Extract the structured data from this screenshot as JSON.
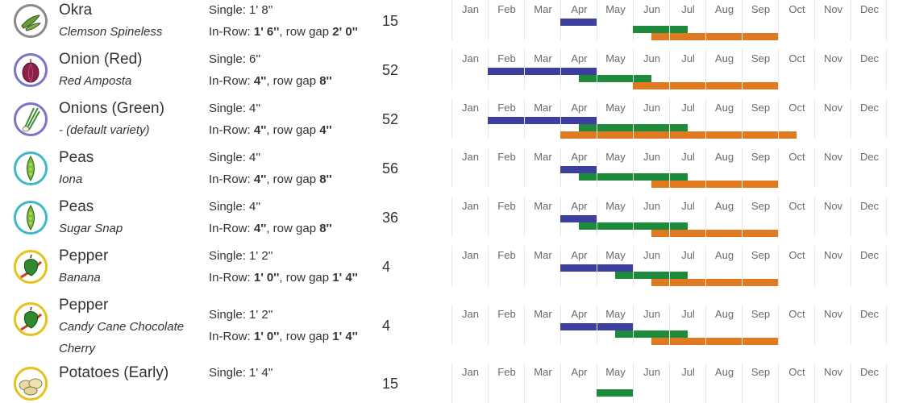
{
  "months": [
    "Jan",
    "Feb",
    "Mar",
    "Apr",
    "May",
    "Jun",
    "Jul",
    "Aug",
    "Sep",
    "Oct",
    "Nov",
    "Dec"
  ],
  "colors": {
    "indoor": "#3d3f9e",
    "transplant": "#1e8a3c",
    "harvest": "#e07a20"
  },
  "plants": [
    {
      "name": "Okra",
      "variety": [
        "Clemson Spineless"
      ],
      "icon": "okra-icon",
      "icon_color": "#8a8a8a",
      "single_label": "Single:",
      "single_value": "1' 8''",
      "inrow_label": "In-Row:",
      "inrow_value": "1' 6''",
      "gap_label": ", row gap",
      "gap_value": "2' 0''",
      "count": "15",
      "bars": [
        {
          "kind": "indoor",
          "start": 3.0,
          "end": 4.0
        },
        {
          "kind": "transplant",
          "start": 5.0,
          "end": 6.5
        },
        {
          "kind": "harvest",
          "start": 5.5,
          "end": 9.0
        }
      ]
    },
    {
      "name": "Onion (Red)",
      "variety": [
        "Red Amposta"
      ],
      "icon": "onion-icon",
      "icon_color": "#7b74c9",
      "single_label": "Single:",
      "single_value": "6''",
      "inrow_label": "In-Row:",
      "inrow_value": "4''",
      "gap_label": ", row gap",
      "gap_value": "8''",
      "count": "52",
      "bars": [
        {
          "kind": "indoor",
          "start": 1.0,
          "end": 4.0
        },
        {
          "kind": "transplant",
          "start": 3.5,
          "end": 5.5
        },
        {
          "kind": "harvest",
          "start": 5.0,
          "end": 9.0
        }
      ]
    },
    {
      "name": "Onions (Green)",
      "variety": [
        "- (default variety)"
      ],
      "icon": "green-onion-icon",
      "icon_color": "#7b74c9",
      "single_label": "Single:",
      "single_value": "4''",
      "inrow_label": "In-Row:",
      "inrow_value": "4''",
      "gap_label": ", row gap",
      "gap_value": "4''",
      "count": "52",
      "bars": [
        {
          "kind": "indoor",
          "start": 1.0,
          "end": 4.0
        },
        {
          "kind": "transplant",
          "start": 3.5,
          "end": 6.5
        },
        {
          "kind": "harvest",
          "start": 3.0,
          "end": 9.5
        }
      ]
    },
    {
      "name": "Peas",
      "variety": [
        "Iona"
      ],
      "icon": "pea-pod-icon",
      "icon_color": "#3fb8c8",
      "single_label": "Single:",
      "single_value": "4''",
      "inrow_label": "In-Row:",
      "inrow_value": "4''",
      "gap_label": ", row gap",
      "gap_value": "8''",
      "count": "56",
      "bars": [
        {
          "kind": "indoor",
          "start": 3.0,
          "end": 4.0
        },
        {
          "kind": "transplant",
          "start": 3.5,
          "end": 6.5
        },
        {
          "kind": "harvest",
          "start": 5.5,
          "end": 9.0
        }
      ]
    },
    {
      "name": "Peas",
      "variety": [
        "Sugar Snap"
      ],
      "icon": "pea-pod-icon",
      "icon_color": "#3fb8c8",
      "single_label": "Single:",
      "single_value": "4''",
      "inrow_label": "In-Row:",
      "inrow_value": "4''",
      "gap_label": ", row gap",
      "gap_value": "8''",
      "count": "36",
      "bars": [
        {
          "kind": "indoor",
          "start": 3.0,
          "end": 4.0
        },
        {
          "kind": "transplant",
          "start": 3.5,
          "end": 6.5
        },
        {
          "kind": "harvest",
          "start": 5.5,
          "end": 9.0
        }
      ]
    },
    {
      "name": "Pepper",
      "variety": [
        "Banana"
      ],
      "icon": "pepper-icon",
      "icon_color": "#e6c21a",
      "single_label": "Single:",
      "single_value": "1' 2''",
      "inrow_label": "In-Row:",
      "inrow_value": "1' 0''",
      "gap_label": ", row gap",
      "gap_value": "1' 4''",
      "count": "4",
      "bars": [
        {
          "kind": "indoor",
          "start": 3.0,
          "end": 5.0
        },
        {
          "kind": "transplant",
          "start": 4.5,
          "end": 6.5
        },
        {
          "kind": "harvest",
          "start": 5.5,
          "end": 9.0
        }
      ]
    },
    {
      "name": "Pepper",
      "variety": [
        "Candy Cane Chocolate",
        "Cherry"
      ],
      "icon": "pepper-icon",
      "icon_color": "#e6c21a",
      "single_label": "Single:",
      "single_value": "1' 2''",
      "inrow_label": "In-Row:",
      "inrow_value": "1' 0''",
      "gap_label": ", row gap",
      "gap_value": "1' 4''",
      "count": "4",
      "bars": [
        {
          "kind": "indoor",
          "start": 3.0,
          "end": 5.0
        },
        {
          "kind": "transplant",
          "start": 4.5,
          "end": 6.5
        },
        {
          "kind": "harvest",
          "start": 5.5,
          "end": 9.0
        }
      ]
    },
    {
      "name": "Potatoes (Early)",
      "variety": [],
      "icon": "potato-icon",
      "icon_color": "#e6c21a",
      "single_label": "Single:",
      "single_value": "1' 4''",
      "count": "15",
      "bars": [
        {
          "kind": "transplant",
          "start": 4.0,
          "end": 5.0
        }
      ]
    }
  ]
}
